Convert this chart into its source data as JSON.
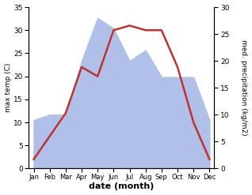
{
  "months": [
    "Jan",
    "Feb",
    "Mar",
    "Apr",
    "May",
    "Jun",
    "Jul",
    "Aug",
    "Sep",
    "Oct",
    "Nov",
    "Dec"
  ],
  "temperature": [
    2,
    7,
    12,
    22,
    20,
    30,
    31,
    30,
    30,
    22,
    10,
    2
  ],
  "precipitation": [
    9,
    10,
    10,
    20,
    28,
    26,
    20,
    22,
    17,
    17,
    17,
    9
  ],
  "temp_color": "#bb3333",
  "precip_color": "#b0c0e8",
  "temp_ylim": [
    0,
    35
  ],
  "precip_ylim": [
    0,
    30
  ],
  "temp_yticks": [
    0,
    5,
    10,
    15,
    20,
    25,
    30,
    35
  ],
  "precip_yticks": [
    0,
    5,
    10,
    15,
    20,
    25,
    30
  ],
  "xlabel": "date (month)",
  "ylabel_left": "max temp (C)",
  "ylabel_right": "med. precipitation (kg/m2)",
  "bg_color": "#ffffff"
}
